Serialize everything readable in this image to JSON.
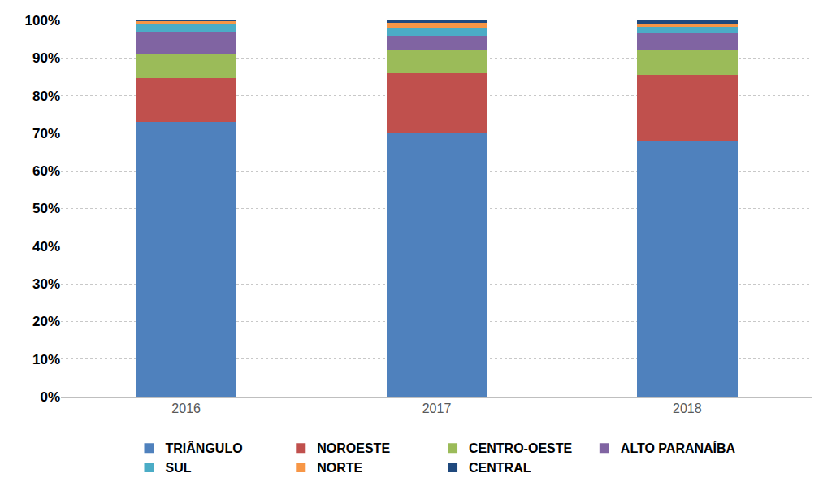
{
  "chart_data": {
    "type": "bar",
    "stacked": true,
    "categories": [
      "2016",
      "2017",
      "2018"
    ],
    "series": [
      {
        "name": "TRIÂNGULO",
        "color": "#4F81BD",
        "values": [
          73.0,
          70.0,
          67.8
        ]
      },
      {
        "name": "NOROESTE",
        "color": "#C0504D",
        "values": [
          11.7,
          16.0,
          17.8
        ]
      },
      {
        "name": "CENTRO-OESTE",
        "color": "#9BBB59",
        "values": [
          6.5,
          6.0,
          6.5
        ]
      },
      {
        "name": "ALTO PARANAÍBA",
        "color": "#8064A2",
        "values": [
          5.8,
          4.0,
          4.6
        ]
      },
      {
        "name": "SUL",
        "color": "#4BACC6",
        "values": [
          2.2,
          1.8,
          1.5
        ]
      },
      {
        "name": "NORTE",
        "color": "#F79646",
        "values": [
          0.6,
          1.6,
          0.9
        ]
      },
      {
        "name": "CENTRAL",
        "color": "#1F497D",
        "values": [
          0.2,
          0.6,
          0.9
        ]
      }
    ],
    "ylim": [
      0,
      100
    ],
    "yticks": [
      {
        "value": 0,
        "label": "0%"
      },
      {
        "value": 10,
        "label": "10%"
      },
      {
        "value": 20,
        "label": "20%"
      },
      {
        "value": 30,
        "label": "30%"
      },
      {
        "value": 40,
        "label": "40%"
      },
      {
        "value": 50,
        "label": "50%"
      },
      {
        "value": 60,
        "label": "60%"
      },
      {
        "value": 70,
        "label": "70%"
      },
      {
        "value": 80,
        "label": "80%"
      },
      {
        "value": 90,
        "label": "90%"
      },
      {
        "value": 100,
        "label": "100%"
      }
    ],
    "grid": true,
    "legend": "bottom"
  }
}
